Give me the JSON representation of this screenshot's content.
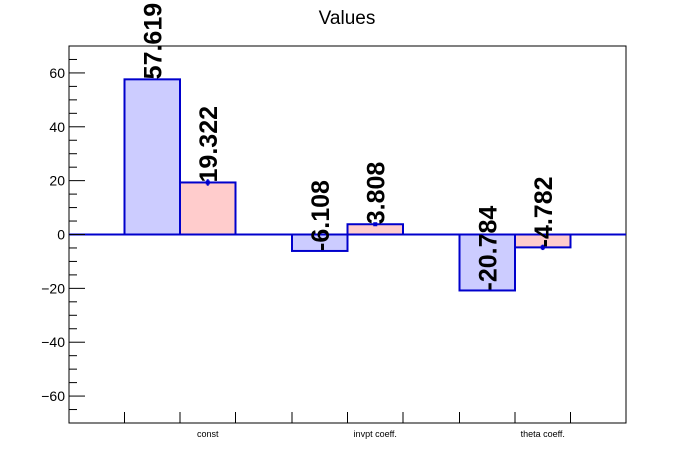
{
  "chart_data": {
    "type": "bar",
    "title": "Values",
    "xlabel": "",
    "ylabel": "",
    "categories": [
      "const",
      "invpt coeff.",
      "theta coeff."
    ],
    "ylim": [
      -70,
      70
    ],
    "yticks": [
      -60,
      -40,
      -20,
      0,
      20,
      40,
      60
    ],
    "grid": false,
    "legend": "none",
    "series": [
      {
        "values": [
          57.619,
          -6.108,
          -20.784
        ],
        "labels": [
          "57.619",
          "-6.108",
          "-20.784"
        ],
        "fill": "#ccccff",
        "stroke": "#0000cc",
        "errors": [
          0,
          0,
          0
        ]
      },
      {
        "values": [
          19.322,
          3.808,
          -4.782
        ],
        "labels": [
          "19.322",
          "3.808",
          "-4.782"
        ],
        "fill": "#ffcccc",
        "stroke": "#0000cc",
        "errors": [
          1.2,
          0.4,
          1.0
        ]
      }
    ]
  }
}
